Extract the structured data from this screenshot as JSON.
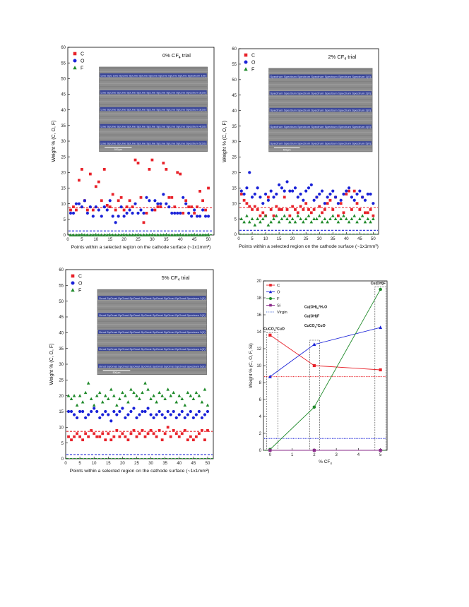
{
  "charts": [
    {
      "id": "p0",
      "trial_text": "0% CF",
      "trial_sub": "4",
      "trial_suffix": " trial",
      "ylabel": "Weight % (C, O, F)",
      "xlabel": "Points within a selected region on the cathode surface (~1x1mm²)",
      "legend": [
        "C",
        "O",
        "F"
      ],
      "yticks": [
        "0",
        "5",
        "10",
        "15",
        "20",
        "25",
        "30",
        "35",
        "40",
        "45",
        "50",
        "55",
        "60"
      ],
      "xticks": [
        "0",
        "5",
        "10",
        "15",
        "20",
        "25",
        "30",
        "35",
        "40",
        "45",
        "50"
      ],
      "scalebar": "500µm",
      "inset_rows": [
        "Line Spe Line SpLine SpLine SpLine SpLine SpLine SpLine SpLine Spectrum 1(0)",
        "Line SpLine SpLine SpLine SpLine SpLine SpLine SpLine SpLine Spectrum 3(10)",
        "Line SpLine SpLine SpLine SpLine SpLine SpLine SpLine SpLine Spectrum 3(10)",
        "Line SpLine SpLine SpLine SpLine SpLine SpLine SpLine SpLine Spectrum 4(10)",
        "Line SpLine SpLine SpLine SpLine SpLine SpLine SpLine SpLine Spectrum 5(10)"
      ]
    },
    {
      "id": "p2",
      "trial_text": "2% CF",
      "trial_sub": "4",
      "trial_suffix": " trial",
      "ylabel": "Weight % (C, O, F)",
      "xlabel": "Points within a selected region on the cathode surface (~1x1mm²)",
      "legend": [
        "C",
        "O",
        "F"
      ],
      "yticks": [
        "0",
        "5",
        "10",
        "15",
        "20",
        "25",
        "30",
        "35",
        "40",
        "45",
        "50",
        "55",
        "60"
      ],
      "xticks": [
        "0",
        "5",
        "10",
        "15",
        "20",
        "25",
        "30",
        "35",
        "40",
        "45",
        "50"
      ],
      "scalebar": "500µm",
      "inset_rows": [
        "Spectrum Spectrum Spectrum Spectrum Spectrum Spectrum Spectrum 1(0)",
        "Spectrum Spectrum Spectrum Spectrum Spectrum Spectrum Spectrum 2(0)",
        "Spectrum Spectrum Spectrum Spectrum Spectrum Spectrum Spectrum 3(0)",
        "Spectrum Spectrum Spectrum Spectrum Spectrum Spectrum Spectrum 4(0)",
        "Spectrum Spectrum Spectrum Spectrum Spectrum Spectrum Spectrum 5(0)"
      ]
    },
    {
      "id": "p5",
      "trial_text": "5% CF",
      "trial_sub": "4",
      "trial_suffix": " trial",
      "ylabel": "Weight % (C, O, F)",
      "xlabel": "Points within a selected region on the cathode surface (~1x1mm²)",
      "legend": [
        "C",
        "O",
        "F"
      ],
      "yticks": [
        "0",
        "5",
        "10",
        "15",
        "20",
        "25",
        "30",
        "35",
        "40",
        "45",
        "50",
        "55",
        "60"
      ],
      "xticks": [
        "0",
        "5",
        "10",
        "15",
        "20",
        "25",
        "30",
        "35",
        "40",
        "45",
        "50"
      ],
      "scalebar": "500µm",
      "inset_rows": [
        "Omst SpOmst SpOmst SpOmst SpOmst SpOmst SpOmst SpOmst Spectrum 1(0)",
        "Omst SpOmst SpOmst SpOmst SpOmst SpOmst SpOmst SpOmst Spectrum 2(0)",
        "Omst SpOmst SpOmst SpOmst SpOmst SpOmst SpOmst SpOmst Spectrum 3(0)",
        "Omst SpOmst SpOmst SpOmst SpOmst SpOmst SpOmst SpOmst Spectrum 4(0)",
        "Omst SpOmst SpOmst SpOmst SpOmst SpOmst SpOmst SpOmst Spectrum 5(0)"
      ]
    },
    {
      "id": "summary",
      "ylabel": "Weight % (C, O, F, Si)",
      "xlabel_main": "% CF",
      "xlabel_sub": "4",
      "legend": [
        "C",
        "O",
        "F",
        "Si",
        "Virgin"
      ],
      "yticks": [
        "0",
        "2",
        "4",
        "6",
        "8",
        "10",
        "12",
        "14",
        "16",
        "18",
        "20"
      ],
      "xticks": [
        "0",
        "1",
        "2",
        "3",
        "4",
        "5"
      ],
      "annotations": [
        {
          "main": "CuCO",
          "sub": "3",
          "rest": "*CuO"
        },
        {
          "main": "Cu(OH)",
          "sub": "2",
          "rest": "*H₂O"
        },
        {
          "main": "Cu(OH)F",
          "sub": "",
          "rest": ""
        },
        {
          "main": "CuCO",
          "sub": "3",
          "rest": "*CuO"
        },
        {
          "main": "Cu(OH)F",
          "sub": "",
          "rest": ""
        }
      ]
    }
  ],
  "chart_data": [
    {
      "type": "scatter",
      "title": "0% CF4 trial",
      "x": [
        1,
        2,
        3,
        4,
        5,
        6,
        7,
        8,
        9,
        10,
        11,
        12,
        13,
        14,
        15,
        16,
        17,
        18,
        19,
        20,
        21,
        22,
        23,
        24,
        25,
        26,
        27,
        28,
        29,
        30,
        31,
        32,
        33,
        34,
        35,
        36,
        37,
        38,
        39,
        40,
        41,
        42,
        43,
        44,
        45,
        46,
        47,
        48,
        49,
        50
      ],
      "series": [
        {
          "name": "C",
          "color": "#e8222a",
          "marker": "square",
          "values": [
            8,
            9,
            8,
            17.5,
            21,
            11,
            8,
            19.5,
            8,
            15.5,
            17,
            11,
            21,
            9.5,
            9,
            13,
            8,
            11,
            12,
            8,
            9,
            11,
            9,
            24,
            23,
            12,
            4,
            7,
            21,
            24,
            8,
            9,
            9,
            23,
            21,
            12,
            12,
            9,
            20,
            19.5,
            7,
            11,
            9,
            9,
            7,
            9,
            14,
            11,
            8,
            15
          ]
        },
        {
          "name": "O",
          "color": "#1a22d8",
          "marker": "circle",
          "values": [
            7,
            7,
            10,
            10,
            9,
            11,
            7,
            9,
            6,
            9,
            8,
            6,
            9,
            8,
            11,
            6,
            4,
            6,
            9,
            6,
            7,
            8,
            7,
            10,
            7,
            8,
            7,
            12,
            11,
            8,
            11,
            10,
            10,
            13,
            10,
            9,
            7,
            7,
            7,
            7,
            12,
            10,
            7,
            6,
            8,
            6,
            6,
            8,
            6,
            6
          ]
        },
        {
          "name": "F",
          "color": "#1f8a2a",
          "marker": "triangle",
          "values": [
            0,
            0,
            0,
            0,
            0,
            0,
            0,
            0,
            0,
            0,
            0,
            0,
            0,
            0,
            0,
            0,
            0,
            0,
            0,
            0,
            0,
            0,
            0,
            0,
            0,
            0,
            0,
            0,
            0,
            0,
            0,
            0,
            0,
            0,
            0,
            0,
            0,
            0,
            0,
            0,
            0,
            0,
            0,
            0,
            0,
            0,
            0,
            0,
            0,
            0
          ]
        }
      ],
      "reference_lines": [
        {
          "series": "C",
          "y": 8.7
        },
        {
          "series": "O",
          "y": 1.3
        },
        {
          "series": "F",
          "y": 0.1
        }
      ],
      "xlabel": "Points within a selected region on the cathode surface (~1x1mm2)",
      "ylabel": "Weight % (C, O, F)",
      "xlim": [
        0,
        52
      ],
      "ylim": [
        0,
        60
      ]
    },
    {
      "type": "scatter",
      "title": "2% CF4 trial",
      "x": [
        1,
        2,
        3,
        4,
        5,
        6,
        7,
        8,
        9,
        10,
        11,
        12,
        13,
        14,
        15,
        16,
        17,
        18,
        19,
        20,
        21,
        22,
        23,
        24,
        25,
        26,
        27,
        28,
        29,
        30,
        31,
        32,
        33,
        34,
        35,
        36,
        37,
        38,
        39,
        40,
        41,
        42,
        43,
        44,
        45,
        46,
        47,
        48,
        49,
        50
      ],
      "series": [
        {
          "name": "C",
          "color": "#e8222a",
          "marker": "square",
          "values": [
            13,
            11,
            10,
            9,
            8,
            9,
            8,
            6,
            7,
            6,
            12,
            8,
            6,
            9,
            8,
            8,
            12,
            8,
            6,
            9,
            8,
            7,
            9,
            8,
            10,
            8,
            7,
            8,
            12,
            9,
            7,
            8,
            10,
            11,
            8,
            12,
            6,
            10,
            7,
            13,
            14,
            8,
            14,
            10,
            8,
            12,
            7,
            7,
            8,
            6
          ]
        },
        {
          "name": "O",
          "color": "#1a22d8",
          "marker": "circle",
          "values": [
            14,
            13,
            15,
            20,
            12,
            13,
            15,
            12,
            10,
            13,
            11,
            14,
            12,
            13,
            16,
            15,
            14,
            17,
            14,
            14,
            15,
            12,
            13,
            11,
            14,
            15,
            16,
            11,
            12,
            13,
            14,
            10,
            12,
            13,
            14,
            12,
            10,
            11,
            13,
            14,
            15,
            12,
            11,
            13,
            14,
            12,
            11,
            13,
            13,
            10
          ]
        },
        {
          "name": "F",
          "color": "#1f8a2a",
          "marker": "triangle",
          "values": [
            5,
            4,
            6,
            4,
            5,
            3,
            5,
            4,
            5,
            6,
            3,
            4,
            5,
            6,
            4,
            5,
            6,
            5,
            4,
            5,
            4,
            6,
            5,
            4,
            5,
            6,
            4,
            5,
            5,
            6,
            4,
            5,
            4,
            5,
            6,
            5,
            4,
            5,
            6,
            5,
            4,
            5,
            6,
            4,
            5,
            6,
            4,
            5,
            4,
            5
          ]
        }
      ],
      "reference_lines": [
        {
          "series": "C",
          "y": 8.7
        },
        {
          "series": "O",
          "y": 1.3
        },
        {
          "series": "F",
          "y": 0.1
        }
      ],
      "xlabel": "Points within a selected region on the cathode surface (~1x1mm2)",
      "ylabel": "Weight % (C, O, F)",
      "xlim": [
        0,
        52
      ],
      "ylim": [
        0,
        60
      ]
    },
    {
      "type": "scatter",
      "title": "5% CF4 trial",
      "x": [
        1,
        2,
        3,
        4,
        5,
        6,
        7,
        8,
        9,
        10,
        11,
        12,
        13,
        14,
        15,
        16,
        17,
        18,
        19,
        20,
        21,
        22,
        23,
        24,
        25,
        26,
        27,
        28,
        29,
        30,
        31,
        32,
        33,
        34,
        35,
        36,
        37,
        38,
        39,
        40,
        41,
        42,
        43,
        44,
        45,
        46,
        47,
        48,
        49,
        50
      ],
      "series": [
        {
          "name": "C",
          "color": "#e8222a",
          "marker": "square",
          "values": [
            7,
            6,
            7,
            8,
            7,
            6,
            8,
            7,
            9,
            8,
            7,
            7,
            8,
            6,
            8,
            6,
            7,
            9,
            7,
            8,
            7,
            6,
            8,
            9,
            7,
            8,
            9,
            7,
            8,
            9,
            8,
            7,
            9,
            6,
            8,
            10,
            7,
            9,
            8,
            7,
            8,
            9,
            6,
            7,
            6,
            7,
            8,
            9,
            6,
            9
          ]
        },
        {
          "name": "O",
          "color": "#1a22d8",
          "marker": "circle",
          "values": [
            15,
            15,
            14,
            13,
            15,
            15,
            13,
            14,
            15,
            16,
            15,
            13,
            14,
            15,
            14,
            12,
            15,
            14,
            15,
            16,
            13,
            14,
            15,
            16,
            13,
            14,
            15,
            15,
            16,
            14,
            13,
            14,
            15,
            14,
            13,
            15,
            14,
            15,
            13,
            14,
            15,
            13,
            14,
            15,
            13,
            14,
            15,
            13,
            14,
            15
          ]
        },
        {
          "name": "F",
          "color": "#1f8a2a",
          "marker": "triangle",
          "values": [
            20,
            19,
            20,
            17,
            20,
            18,
            21,
            24,
            19,
            17,
            20,
            21,
            18,
            20,
            19,
            22,
            20,
            17,
            19,
            21,
            20,
            18,
            22,
            21,
            20,
            19,
            21,
            24,
            22,
            19,
            20,
            18,
            21,
            20,
            19,
            22,
            20,
            21,
            18,
            20,
            19,
            17,
            21,
            20,
            19,
            21,
            20,
            18,
            22,
            17
          ]
        }
      ],
      "reference_lines": [
        {
          "series": "C",
          "y": 8.7
        },
        {
          "series": "O",
          "y": 1.3
        },
        {
          "series": "F",
          "y": 0.1
        }
      ],
      "xlabel": "Points within a selected region on the cathode surface (~1x1mm2)",
      "ylabel": "Weight % (C, O, F)",
      "xlim": [
        0,
        52
      ],
      "ylim": [
        0,
        60
      ]
    },
    {
      "type": "line",
      "x": [
        0,
        2,
        5
      ],
      "series": [
        {
          "name": "C",
          "color": "#e8222a",
          "marker": "square",
          "values": [
            13.6,
            10.0,
            9.5
          ]
        },
        {
          "name": "O",
          "color": "#1a22d8",
          "marker": "triangle",
          "values": [
            8.7,
            12.5,
            14.5
          ]
        },
        {
          "name": "F",
          "color": "#1f8a2a",
          "marker": "circle",
          "values": [
            0.1,
            5.1,
            19.0
          ]
        },
        {
          "name": "Si",
          "color": "#8a2a8a",
          "marker": "square",
          "values": [
            0,
            0,
            0
          ]
        }
      ],
      "reference_lines": [
        {
          "name": "Virgin",
          "series": "C",
          "y": 8.7,
          "color": "#e8222a"
        },
        {
          "name": "Virgin",
          "series": "O",
          "y": 1.4,
          "color": "#1a22d8"
        },
        {
          "name": "Virgin",
          "series": "F",
          "y": 0.0,
          "color": "#1f8a2a"
        }
      ],
      "xlabel": "% CF4",
      "ylabel": "Weight % (C, O, F, Si)",
      "xlim": [
        -0.3,
        5.3
      ],
      "ylim": [
        0,
        20
      ]
    }
  ]
}
